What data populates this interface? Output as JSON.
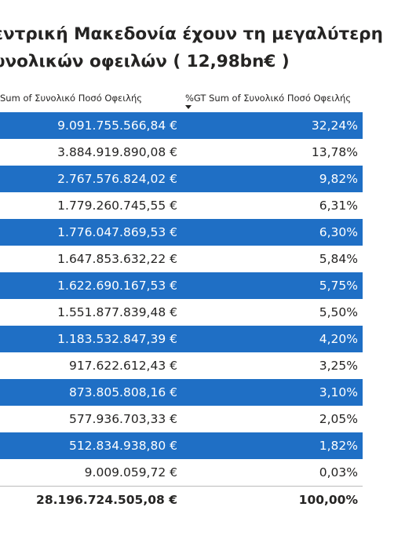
{
  "title": {
    "line1": "εντρική Μακεδονία  έχουν τη μεγαλύτερη",
    "line2": "υνολικών οφειλών ( 12,98bn€ )"
  },
  "chart_data": {
    "type": "table",
    "columns": [
      "Sum of Συνολικό Ποσό Οφειλής",
      "%GT Sum of Συνολικό Ποσό Οφειλής"
    ],
    "sort": "descending on second column",
    "rows": [
      {
        "amount": "9.091.755.566,84 €",
        "pct": "32,24%"
      },
      {
        "amount": "3.884.919.890,08 €",
        "pct": "13,78%"
      },
      {
        "amount": "2.767.576.824,02 €",
        "pct": "9,82%"
      },
      {
        "amount": "1.779.260.745,55 €",
        "pct": "6,31%"
      },
      {
        "amount": "1.776.047.869,53 €",
        "pct": "6,30%"
      },
      {
        "amount": "1.647.853.632,22 €",
        "pct": "5,84%"
      },
      {
        "amount": "1.622.690.167,53 €",
        "pct": "5,75%"
      },
      {
        "amount": "1.551.877.839,48 €",
        "pct": "5,50%"
      },
      {
        "amount": "1.183.532.847,39 €",
        "pct": "4,20%"
      },
      {
        "amount": "917.622.612,43 €",
        "pct": "3,25%"
      },
      {
        "amount": "873.805.808,16 €",
        "pct": "3,10%"
      },
      {
        "amount": "577.936.703,33 €",
        "pct": "2,05%"
      },
      {
        "amount": "512.834.938,80 €",
        "pct": "1,82%"
      },
      {
        "amount": "9.009.059,72 €",
        "pct": "0,03%"
      }
    ],
    "total": {
      "amount": "28.196.724.505,08 €",
      "pct": "100,00%"
    }
  },
  "colors": {
    "band": "#1f6fc5",
    "band_text": "#ffffff",
    "text": "#252423"
  }
}
